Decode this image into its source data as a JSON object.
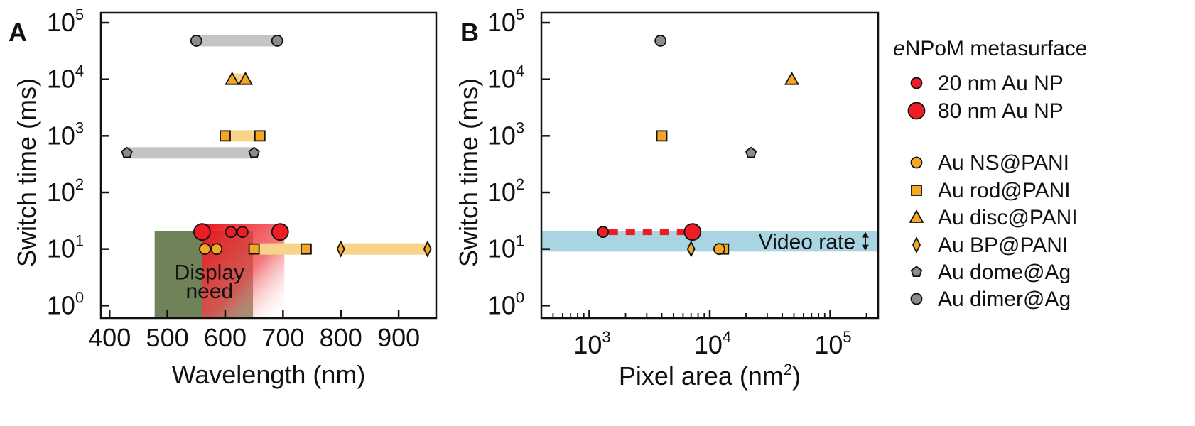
{
  "colors": {
    "red": "#ee1c25",
    "orange": "#f5a623",
    "gray": "#8c8c8c",
    "pale_orange": "#f8d38a",
    "pale_gray": "#c4c4c4",
    "video_band": "#a9d5e2",
    "display_green": "#6f8258"
  },
  "chart_data": [
    {
      "panel": "A",
      "type": "scatter",
      "xlabel": "Wavelength (nm)",
      "ylabel": "Switch time (ms)",
      "xlim": [
        385,
        965
      ],
      "xscale": "linear",
      "xticks": [
        400,
        500,
        600,
        700,
        800,
        900
      ],
      "xtick_labels": [
        "400",
        "500",
        "600",
        "700",
        "800",
        "900"
      ],
      "ylim": [
        0.6,
        150000
      ],
      "yscale": "log",
      "yticks": [
        1,
        10,
        100,
        1000,
        10000,
        100000
      ],
      "ytick_labels": [
        {
          "base": "10",
          "exp": "0"
        },
        {
          "base": "10",
          "exp": "1"
        },
        {
          "base": "10",
          "exp": "2"
        },
        {
          "base": "10",
          "exp": "3"
        },
        {
          "base": "10",
          "exp": "4"
        },
        {
          "base": "10",
          "exp": "5"
        }
      ],
      "annotation": {
        "text_line1": "Display",
        "text_line2": "need",
        "x": [
          478,
          648
        ],
        "y": [
          0.6,
          21
        ]
      },
      "range_bars": [
        {
          "name": "Au dimer@Ag",
          "x": [
            550,
            690
          ],
          "y": 48000,
          "color": "pale_gray"
        },
        {
          "name": "Au disc@PANI",
          "x": [
            612,
            635
          ],
          "y": 10000,
          "color": "pale_orange"
        },
        {
          "name": "Au rod@PANI",
          "x": [
            600,
            660
          ],
          "y": 1000,
          "color": "pale_orange"
        },
        {
          "name": "Au dome@Ag",
          "x": [
            430,
            650
          ],
          "y": 500,
          "color": "pale_gray"
        },
        {
          "name": "Au BP@PANI",
          "x": [
            800,
            950
          ],
          "y": 10,
          "color": "pale_orange"
        },
        {
          "name": "Au rod@PANI (long)",
          "x": [
            650,
            740
          ],
          "y": 10,
          "color": "pale_orange"
        }
      ],
      "series": [
        {
          "name": "Au dimer@Ag",
          "marker": "circle",
          "color": "gray",
          "points": [
            [
              550,
              48000
            ],
            [
              690,
              48000
            ]
          ]
        },
        {
          "name": "Au disc@PANI",
          "marker": "triangle",
          "color": "orange",
          "points": [
            [
              612,
              10000
            ],
            [
              635,
              10000
            ]
          ]
        },
        {
          "name": "Au rod@PANI",
          "marker": "square",
          "color": "orange",
          "points": [
            [
              600,
              1000
            ],
            [
              660,
              1000
            ],
            [
              650,
              10
            ],
            [
              740,
              10
            ]
          ]
        },
        {
          "name": "Au dome@Ag",
          "marker": "pentagon",
          "color": "gray",
          "points": [
            [
              430,
              500
            ],
            [
              650,
              500
            ]
          ]
        },
        {
          "name": "Au NS@PANI",
          "marker": "circle",
          "color": "orange",
          "points": [
            [
              565,
              10
            ],
            [
              585,
              10
            ]
          ]
        },
        {
          "name": "Au BP@PANI",
          "marker": "diamond",
          "color": "orange",
          "points": [
            [
              800,
              10
            ],
            [
              950,
              10
            ]
          ]
        },
        {
          "name": "80 nm Au NP",
          "marker": "circle-large",
          "color": "red",
          "points": [
            [
              560,
              20
            ],
            [
              695,
              20
            ]
          ]
        },
        {
          "name": "20 nm Au NP",
          "marker": "circle",
          "color": "red",
          "points": [
            [
              610,
              20
            ],
            [
              630,
              20
            ]
          ]
        }
      ]
    },
    {
      "panel": "B",
      "type": "scatter",
      "xlabel_main": "Pixel area (nm",
      "xlabel_exp": "2",
      "xlabel_end": ")",
      "ylabel": "Switch time (ms)",
      "xlim": [
        400,
        250000
      ],
      "xscale": "log",
      "xticks": [
        1000,
        10000,
        100000
      ],
      "xtick_labels": [
        {
          "base": "10",
          "exp": "3"
        },
        {
          "base": "10",
          "exp": "4"
        },
        {
          "base": "10",
          "exp": "5"
        }
      ],
      "ylim": [
        0.6,
        150000
      ],
      "yscale": "log",
      "yticks": [
        1,
        10,
        100,
        1000,
        10000,
        100000
      ],
      "ytick_labels": [
        {
          "base": "10",
          "exp": "0"
        },
        {
          "base": "10",
          "exp": "1"
        },
        {
          "base": "10",
          "exp": "2"
        },
        {
          "base": "10",
          "exp": "3"
        },
        {
          "base": "10",
          "exp": "4"
        },
        {
          "base": "10",
          "exp": "5"
        }
      ],
      "video_band": {
        "label": "Video rate",
        "y": [
          9,
          21
        ]
      },
      "series": [
        {
          "name": "Au dimer@Ag",
          "marker": "circle",
          "color": "gray",
          "points": [
            [
              3900,
              48000
            ]
          ]
        },
        {
          "name": "Au disc@PANI",
          "marker": "triangle",
          "color": "orange",
          "points": [
            [
              48000,
              10000
            ]
          ]
        },
        {
          "name": "Au rod@PANI",
          "marker": "square",
          "color": "orange",
          "points": [
            [
              4000,
              1000
            ],
            [
              13000,
              10
            ]
          ]
        },
        {
          "name": "Au dome@Ag",
          "marker": "pentagon",
          "color": "gray",
          "points": [
            [
              22000,
              500
            ]
          ]
        },
        {
          "name": "Au NS@PANI",
          "marker": "circle",
          "color": "orange",
          "points": [
            [
              12000,
              10
            ]
          ]
        },
        {
          "name": "Au BP@PANI",
          "marker": "diamond",
          "color": "orange",
          "points": [
            [
              7000,
              10
            ]
          ]
        },
        {
          "name": "20 nm Au NP",
          "marker": "circle",
          "color": "red",
          "points": [
            [
              1300,
              20
            ]
          ]
        },
        {
          "name": "80 nm Au NP",
          "marker": "circle-large",
          "color": "red",
          "points": [
            [
              7200,
              20
            ]
          ]
        }
      ],
      "dashed_link": {
        "from": [
          1300,
          20
        ],
        "to": [
          7200,
          20
        ],
        "color": "red"
      }
    }
  ],
  "legend": {
    "title_italic": "e",
    "title_rest": "NPoM metasurface",
    "items": [
      {
        "label": "20 nm Au NP",
        "marker": "circle",
        "color": "red"
      },
      {
        "label": "80 nm Au NP",
        "marker": "circle-large",
        "color": "red"
      },
      {
        "label": "Au NS@PANI",
        "marker": "circle",
        "color": "orange"
      },
      {
        "label": "Au rod@PANI",
        "marker": "square",
        "color": "orange"
      },
      {
        "label": "Au disc@PANI",
        "marker": "triangle",
        "color": "orange"
      },
      {
        "label": "Au BP@PANI",
        "marker": "diamond",
        "color": "orange"
      },
      {
        "label": "Au dome@Ag",
        "marker": "pentagon",
        "color": "gray"
      },
      {
        "label": "Au dimer@Ag",
        "marker": "circle",
        "color": "gray"
      }
    ]
  }
}
